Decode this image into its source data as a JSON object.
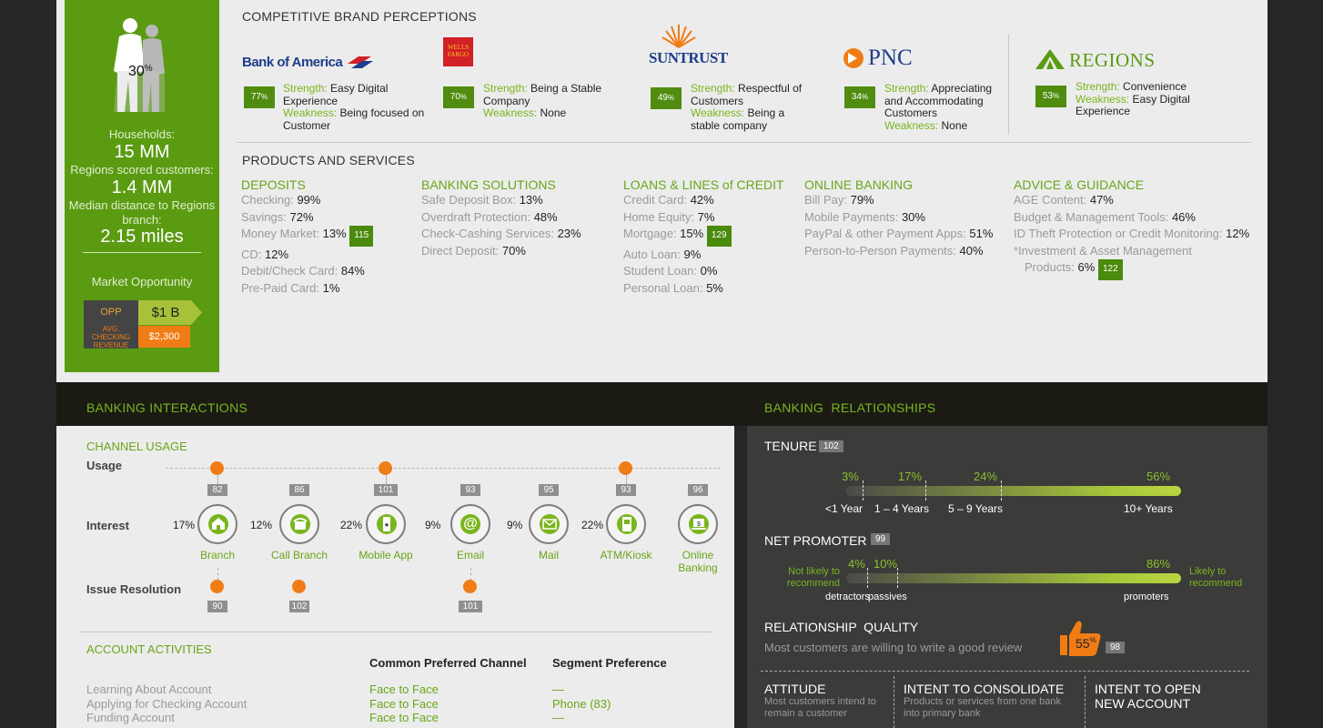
{
  "left_panel": {
    "percent": "30",
    "percent_sign": "%",
    "households_label": "Households:",
    "households_value": "15 MM",
    "scored_label": "Regions scored customers:",
    "scored_value": "1.4 MM",
    "distance_label": "Median distance to Regions branch:",
    "distance_value": "2.15 miles",
    "market_label": "Market Opportunity",
    "opp_label": "OPP",
    "opp_value": "$1 B",
    "avg_label": "AVG. CHECKING REVENUE",
    "avg_value": "$2,300"
  },
  "brands": {
    "title": "COMPETITIVE BRAND PERCEPTIONS",
    "items": [
      {
        "name": "Bank of America",
        "score": "77",
        "strength_label": "Strength:",
        "strength": "Easy Digital Experience",
        "weakness_label": "Weakness:",
        "weakness": "Being focused on Customer"
      },
      {
        "name": "WELLS FARGO",
        "score": "70",
        "strength_label": "Strength:",
        "strength": "Being a Stable Company",
        "weakness_label": "Weakness:",
        "weakness": "None"
      },
      {
        "name": "SunTrust",
        "score": "49",
        "strength_label": "Strength:",
        "strength": "Respectful of Customers",
        "weakness_label": "Weakness:",
        "weakness": "Being a stable company"
      },
      {
        "name": "PNC",
        "score": "34",
        "strength_label": "Strength:",
        "strength": "Appreciating and Accommodating Customers",
        "weakness_label": "Weakness:",
        "weakness": "None"
      },
      {
        "name": "Regions",
        "score": "53",
        "strength_label": "Strength:",
        "strength": "Convenience",
        "weakness_label": "Weakness:",
        "weakness": "Easy Digital Experience"
      }
    ],
    "pct_sign": "%"
  },
  "products": {
    "title": "PRODUCTS AND SERVICES",
    "deposits": {
      "title": "DEPOSITS",
      "lines": [
        {
          "label": "Checking:",
          "value": "99%"
        },
        {
          "label": "Savings:",
          "value": "72%"
        },
        {
          "label": "Money Market:",
          "value": "13%",
          "badge": "115"
        },
        {
          "label": "CD:",
          "value": "12%"
        },
        {
          "label": "Debit/Check Card:",
          "value": "84%"
        },
        {
          "label": "Pre-Paid Card:",
          "value": "1%"
        }
      ]
    },
    "banking": {
      "title": "BANKING SOLUTIONS",
      "lines": [
        {
          "label": "Safe Deposit Box:",
          "value": "13%"
        },
        {
          "label": "Overdraft Protection:",
          "value": "48%"
        },
        {
          "label": "Check-Cashing Services:",
          "value": "23%"
        },
        {
          "label": "Direct Deposit:",
          "value": "70%"
        }
      ]
    },
    "loans": {
      "title": "LOANS & LINES of CREDIT",
      "lines": [
        {
          "label": "Credit Card:",
          "value": "42%"
        },
        {
          "label": "Home Equity:",
          "value": "7%"
        },
        {
          "label": "Mortgage:",
          "value": "15%",
          "badge": "129"
        },
        {
          "label": "Auto Loan:",
          "value": "9%"
        },
        {
          "label": "Student Loan:",
          "value": "0%"
        },
        {
          "label": "Personal Loan:",
          "value": "5%"
        }
      ]
    },
    "online": {
      "title": "ONLINE BANKING",
      "lines": [
        {
          "label": "Bill Pay:",
          "value": "79%"
        },
        {
          "label": "Mobile Payments:",
          "value": "30%"
        },
        {
          "label": "PayPal & other Payment Apps:",
          "value": "51%"
        },
        {
          "label": "Person-to-Person Payments:",
          "value": "40%"
        }
      ]
    },
    "advice": {
      "title": "ADVICE & GUIDANCE",
      "lines": [
        {
          "label": "AGE Content:",
          "value": "47%"
        },
        {
          "label": "Budget & Management Tools:",
          "value": "46%"
        },
        {
          "label": "ID Theft Protection or Credit Monitoring:",
          "value": "12%"
        },
        {
          "label": "*Investment & Asset Management",
          "value": ""
        },
        {
          "label": "Products:",
          "value": "6%",
          "badge": "122"
        }
      ]
    }
  },
  "interactions": {
    "title": "BANKING INTERACTIONS",
    "channel_usage": "CHANNEL USAGE",
    "usage_label": "Usage",
    "interest_label": "Interest",
    "issue_label": "Issue Resolution",
    "channels": [
      {
        "name": "Branch",
        "score": "82",
        "interest": "17%",
        "issue": "90",
        "icon": "branch-icon"
      },
      {
        "name": "Call Branch",
        "score": "86",
        "interest": "12%",
        "issue": "102",
        "icon": "phone-icon"
      },
      {
        "name": "Mobile App",
        "score": "101",
        "interest": "22%",
        "issue": "",
        "icon": "mobile-icon"
      },
      {
        "name": "Email",
        "score": "93",
        "interest": "9%",
        "issue": "101",
        "icon": "at-icon"
      },
      {
        "name": "Mail",
        "score": "95",
        "interest": "9%",
        "issue": "",
        "icon": "envelope-icon"
      },
      {
        "name": "ATM/Kiosk",
        "score": "93",
        "interest": "22%",
        "issue": "",
        "icon": "atm-icon"
      },
      {
        "name": "Online Banking",
        "score": "96",
        "interest": "",
        "issue": "",
        "icon": "laptop-icon"
      }
    ],
    "account_title": "ACCOUNT ACTIVITIES",
    "col_channel": "Common Preferred Channel",
    "col_segment": "Segment Preference",
    "rows": [
      {
        "label": "Learning About Account",
        "channel": "Face to Face",
        "segment": "—"
      },
      {
        "label": "Applying for Checking Account",
        "channel": "Face to Face",
        "segment": "Phone (83)"
      },
      {
        "label": "Funding Account",
        "channel": "Face to Face",
        "segment": "—"
      }
    ]
  },
  "relationships": {
    "title": "BANKING  RELATIONSHIPS",
    "tenure": {
      "title": "TENURE",
      "badge": "102",
      "values": [
        "3%",
        "17%",
        "24%",
        "56%"
      ],
      "labels": [
        "<1 Year",
        "1 – 4 Years",
        "5 – 9 Years",
        "10+ Years"
      ]
    },
    "promoter": {
      "title": "NET PROMOTER",
      "badge": "99",
      "left_label": "Not likely to recommend",
      "right_label": "Likely to recommend",
      "values": [
        "4%",
        "10%",
        "86%"
      ],
      "labels": [
        "detractors",
        "passives",
        "promoters"
      ]
    },
    "quality": {
      "title": "RELATIONSHIP  QUALITY",
      "text": "Most customers are willing to write a good review",
      "value": "55",
      "badge": "98"
    },
    "footer": [
      {
        "title": "ATTITUDE",
        "text": "Most customers intend to remain a customer"
      },
      {
        "title": "INTENT TO CONSOLIDATE",
        "text": "Products or services from one bank into primary bank"
      },
      {
        "title": "INTENT TO OPEN NEW ACCOUNT",
        "text": ""
      }
    ]
  },
  "colors": {
    "green": "#5b9b12",
    "accent": "#7ab51d",
    "orange": "#f07c15",
    "dark": "#262626"
  }
}
